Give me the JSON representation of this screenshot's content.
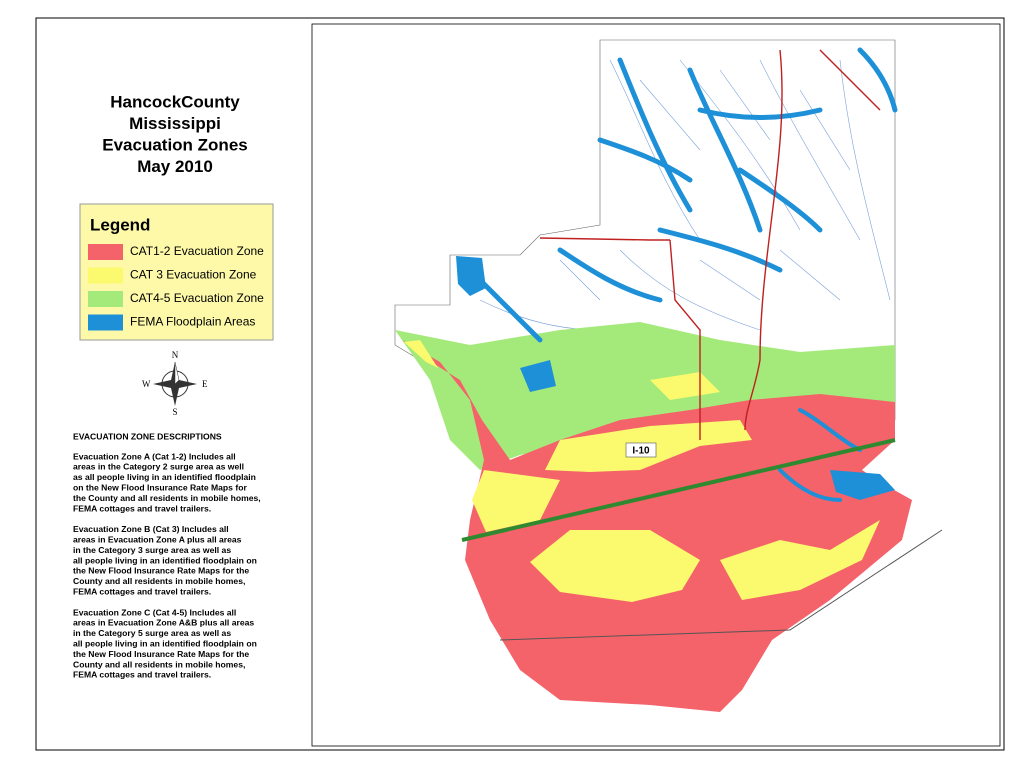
{
  "title": [
    "HancockCounty",
    "Mississippi",
    "Evacuation Zones",
    "May 2010"
  ],
  "legend": {
    "title": "Legend",
    "items": [
      {
        "label": "CAT1-2 Evacuation Zone",
        "color": "#f4626a"
      },
      {
        "label": "CAT 3  Evacuation Zone",
        "color": "#fbfa6e"
      },
      {
        "label": "CAT4-5 Evacuation Zone",
        "color": "#a4ea7a"
      },
      {
        "label": "FEMA Floodplain Areas",
        "color": "#1e90d8"
      }
    ]
  },
  "compass": {
    "n": "N",
    "s": "S",
    "e": "E",
    "w": "W"
  },
  "descriptions": {
    "heading": "EVACUATION ZONE DESCRIPTIONS",
    "paragraphs": [
      [
        "Evacuation Zone  A (Cat 1-2) Includes all",
        "areas in the Category 2 surge area as well",
        "as all people living in an identified floodplain",
        "on the New Flood Insurance Rate Maps for",
        "the County and all residents in mobile homes,",
        "FEMA cottages and travel trailers."
      ],
      [
        "Evacuation Zone B (Cat 3) Includes all",
        "areas in Evacuation Zone A plus all areas",
        "in the Category 3 surge area as well as",
        "all people living in an identified floodplain on",
        "the New Flood Insurance Rate Maps for the",
        "County and all residents in mobile homes,",
        "FEMA cottages and travel trailers."
      ],
      [
        "Evacuation Zone C (Cat 4-5) Includes all",
        "areas in Evacuation Zone A&B plus all areas",
        "in the Category 5 surge area as well as",
        "all people living in an identified floodplain on",
        "the New Flood Insurance Rate Maps for the",
        "County and all residents in mobile homes,",
        "FEMA cottages and travel trailers."
      ]
    ]
  },
  "map": {
    "highway_label": "I-10"
  }
}
